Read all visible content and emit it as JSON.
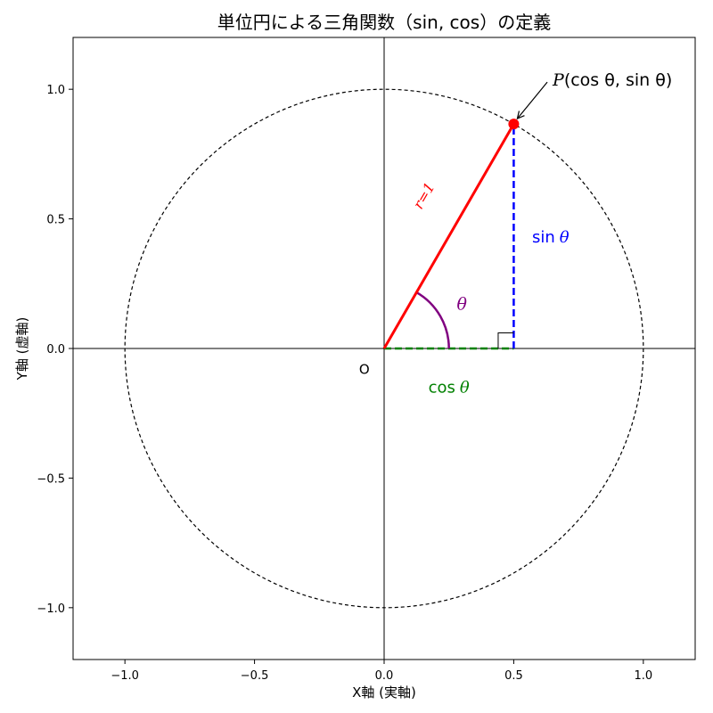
{
  "chart_data": {
    "type": "line",
    "title": "単位円による三角関数（sin, cos）の定義",
    "xlabel": "X軸 (実軸)",
    "ylabel": "Y軸 (虚軸)",
    "xlim": [
      -1.2,
      1.2
    ],
    "ylim": [
      -1.2,
      1.2
    ],
    "xticks": [
      -1.0,
      -0.5,
      0.0,
      0.5,
      1.0
    ],
    "xtick_labels": [
      "−1.0",
      "−0.5",
      "0.0",
      "0.5",
      "1.0"
    ],
    "yticks": [
      -1.0,
      -0.5,
      0.0,
      0.5,
      1.0
    ],
    "ytick_labels": [
      "−1.0",
      "−0.5",
      "0.0",
      "0.5",
      "1.0"
    ],
    "grid": false,
    "theta_deg": 60,
    "circle": {
      "center": [
        0,
        0
      ],
      "radius": 1,
      "style": "dashed",
      "color": "#000000"
    },
    "point": {
      "x": 0.5,
      "y": 0.866,
      "color": "#ff0000"
    },
    "radius_segment": {
      "from": [
        0,
        0
      ],
      "to": [
        0.5,
        0.866
      ],
      "color": "#ff0000"
    },
    "sin_segment": {
      "from": [
        0.5,
        0
      ],
      "to": [
        0.5,
        0.866
      ],
      "color": "#0000ff",
      "style": "dashed"
    },
    "cos_segment": {
      "from": [
        0,
        0
      ],
      "to": [
        0.5,
        0
      ],
      "color": "#008000",
      "style": "dashed"
    },
    "angle_arc": {
      "radius": 0.25,
      "color": "#800080"
    },
    "right_angle_marker": {
      "size": 0.06
    },
    "annotations": {
      "point_label": {
        "prefix": "P",
        "text": "(cos θ, sin θ)",
        "x": 0.65,
        "y": 1.0
      },
      "r_label": {
        "text": "r=1",
        "x": 0.17,
        "y": 0.58,
        "color": "#ff0000"
      },
      "theta_label": {
        "text": "θ",
        "x": 0.3,
        "y": 0.15,
        "color": "#800080"
      },
      "sin_label": {
        "prefix": "sin",
        "symbol": "θ",
        "x": 0.55,
        "y": 0.43,
        "color": "#0000ff"
      },
      "cos_label": {
        "prefix": "cos",
        "symbol": "θ",
        "x": 0.25,
        "y": -0.15,
        "color": "#008000"
      },
      "origin_label": {
        "text": "O",
        "x": -0.08,
        "y": -0.08
      }
    }
  }
}
